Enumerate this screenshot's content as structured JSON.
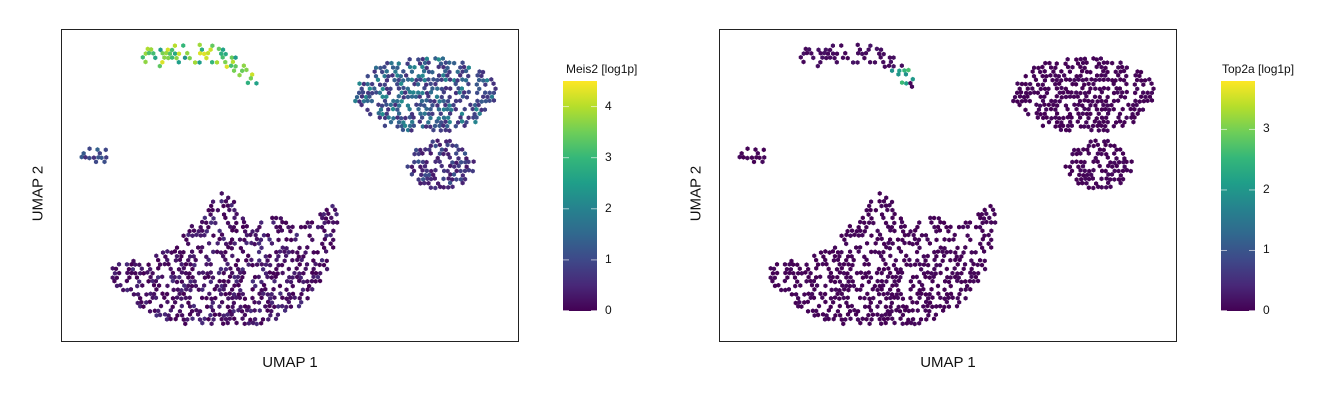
{
  "chart_data": [
    {
      "type": "scatter",
      "title": "",
      "xlabel": "UMAP 1",
      "ylabel": "UMAP 2",
      "colorbar": {
        "label": "Meis2 [log1p]",
        "range": [
          0,
          4.5
        ],
        "ticks": [
          0,
          1,
          2,
          3,
          4
        ],
        "colormap": "viridis"
      },
      "clusters": [
        {
          "name": "top-left arc",
          "value_range": [
            2.0,
            4.3
          ]
        },
        {
          "name": "top-right blob",
          "value_range": [
            0.6,
            2.2
          ]
        },
        {
          "name": "right-middle blob",
          "value_range": [
            0.3,
            1.2
          ]
        },
        {
          "name": "small left cluster",
          "value_range": [
            0.6,
            1.5
          ]
        },
        {
          "name": "large bottom-left cluster",
          "value_range": [
            0.0,
            0.6
          ]
        }
      ]
    },
    {
      "type": "scatter",
      "title": "",
      "xlabel": "UMAP 1",
      "ylabel": "UMAP 2",
      "colorbar": {
        "label": "Top2a [log1p]",
        "range": [
          0,
          3.8
        ],
        "ticks": [
          0,
          1,
          2,
          3
        ],
        "colormap": "viridis"
      },
      "clusters": [
        {
          "name": "top-left arc",
          "value_range": [
            0.0,
            0.2
          ],
          "hotspot_value_range": [
            1.8,
            2.8
          ]
        },
        {
          "name": "top-right blob",
          "value_range": [
            0.0,
            0.1
          ]
        },
        {
          "name": "right-middle blob",
          "value_range": [
            0.0,
            0.1
          ]
        },
        {
          "name": "small left cluster",
          "value_range": [
            0.0,
            0.1
          ]
        },
        {
          "name": "large bottom-left cluster",
          "value_range": [
            0.0,
            0.1
          ]
        }
      ]
    }
  ]
}
